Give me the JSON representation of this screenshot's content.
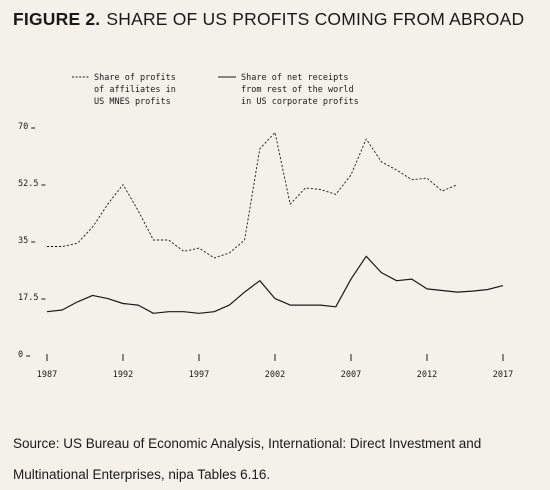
{
  "figure": {
    "label": "FIGURE 2.",
    "title": "SHARE OF US PROFITS COMING FROM ABROAD"
  },
  "source": "Source: US Bureau of Economic Analysis, International: Direct Investment and Multinational Enterprises, nipa Tables 6.16.",
  "chart_data": {
    "type": "line",
    "title": "SHARE OF US PROFITS COMING FROM ABROAD",
    "xlabel": "",
    "ylabel": "",
    "xlim": [
      1987,
      2017
    ],
    "ylim": [
      0,
      70
    ],
    "x_ticks": [
      1987,
      1992,
      1997,
      2002,
      2007,
      2012,
      2017
    ],
    "y_ticks": [
      0,
      17.5,
      35,
      52.5,
      70
    ],
    "y_tick_labels": [
      "0",
      "17.5",
      "35",
      "52.5",
      "70"
    ],
    "grid": false,
    "legend_placement": "top",
    "series": [
      {
        "name": "Share of profits of affiliates in US MNES profits",
        "legend_lines": [
          "Share of profits",
          "of affiliates in",
          "US MNES profits"
        ],
        "style": "dashed",
        "color": "#1a1a1a",
        "x": [
          1987,
          1988,
          1989,
          1990,
          1991,
          1992,
          1993,
          1994,
          1995,
          1996,
          1997,
          1998,
          1999,
          2000,
          2001,
          2002,
          2003,
          2004,
          2005,
          2006,
          2007,
          2008,
          2009,
          2010,
          2011,
          2012,
          2013,
          2014
        ],
        "y": [
          33,
          33,
          34,
          39,
          46,
          52,
          44,
          35,
          35,
          31.5,
          32.5,
          29.5,
          31,
          35,
          63,
          68,
          46,
          51,
          50.5,
          49,
          55,
          66,
          59,
          56.5,
          53.5,
          54,
          50,
          52
        ]
      },
      {
        "name": "Share of net receipts from rest of the world in US corporate profits",
        "legend_lines": [
          "Share of net receipts",
          "from rest of the world",
          "in US corporate profits"
        ],
        "style": "solid",
        "color": "#1a1a1a",
        "x": [
          1987,
          1988,
          1989,
          1990,
          1991,
          1992,
          1993,
          1994,
          1995,
          1996,
          1997,
          1998,
          1999,
          2000,
          2001,
          2002,
          2003,
          2004,
          2005,
          2006,
          2007,
          2008,
          2009,
          2010,
          2011,
          2012,
          2013,
          2014,
          2015,
          2016,
          2017
        ],
        "y": [
          13,
          13.5,
          16,
          18,
          17,
          15.5,
          15,
          12.5,
          13,
          13,
          12.5,
          13,
          15,
          19,
          22.5,
          17,
          15,
          15,
          15,
          14.5,
          23,
          30,
          25,
          22.5,
          23,
          20,
          19.5,
          19,
          19.3,
          19.8,
          21
        ]
      }
    ]
  }
}
